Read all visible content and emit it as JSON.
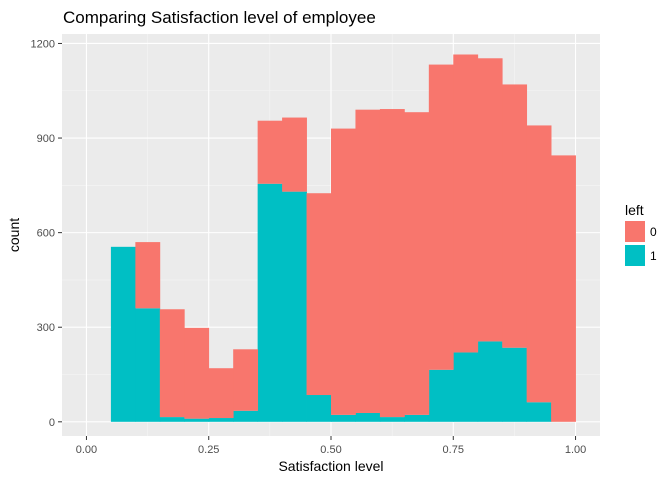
{
  "chart_data": {
    "type": "bar",
    "title": "Comparing Satisfaction level of employee",
    "xlabel": "Satisfaction level",
    "ylabel": "count",
    "xlim": [
      -0.05,
      1.05
    ],
    "ylim": [
      -45,
      1230
    ],
    "x_ticks": [
      {
        "value": 0.0,
        "label": "0.00"
      },
      {
        "value": 0.25,
        "label": "0.25"
      },
      {
        "value": 0.5,
        "label": "0.50"
      },
      {
        "value": 0.75,
        "label": "0.75"
      },
      {
        "value": 1.0,
        "label": "1.00"
      }
    ],
    "y_ticks": [
      {
        "value": 0,
        "label": "0"
      },
      {
        "value": 300,
        "label": "300"
      },
      {
        "value": 600,
        "label": "600"
      },
      {
        "value": 900,
        "label": "900"
      },
      {
        "value": 1200,
        "label": "1200"
      }
    ],
    "bin_edges": [
      0.05,
      0.1,
      0.15,
      0.2,
      0.25,
      0.3,
      0.35,
      0.4,
      0.45,
      0.5,
      0.55,
      0.6,
      0.65,
      0.7,
      0.75,
      0.8,
      0.85,
      0.9,
      0.95,
      1.0
    ],
    "stacked": true,
    "series": [
      {
        "name": "1",
        "color": "#00BFC4",
        "values": [
          555,
          360,
          15,
          10,
          12,
          35,
          755,
          730,
          85,
          22,
          28,
          15,
          22,
          165,
          220,
          255,
          235,
          62,
          0
        ]
      },
      {
        "name": "0",
        "color": "#F8766D",
        "values": [
          0,
          210,
          342,
          288,
          158,
          195,
          200,
          235,
          640,
          908,
          962,
          977,
          960,
          968,
          945,
          898,
          835,
          878,
          845
        ]
      }
    ],
    "legend": {
      "title": "left",
      "position": "right",
      "entries": [
        "0",
        "1"
      ]
    },
    "grid": true,
    "panel_color": "#EBEBEB"
  }
}
